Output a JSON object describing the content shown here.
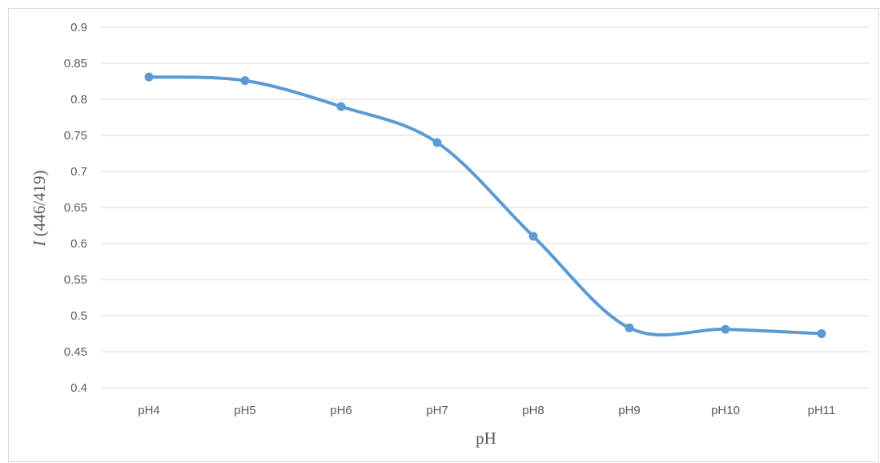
{
  "chart_data": {
    "type": "line",
    "categories": [
      "pH4",
      "pH5",
      "pH6",
      "pH7",
      "pH8",
      "pH9",
      "pH10",
      "pH11"
    ],
    "series": [
      {
        "values": [
          0.831,
          0.826,
          0.79,
          0.74,
          0.61,
          0.483,
          0.481,
          0.475
        ]
      }
    ],
    "xlabel": "pH",
    "ylabel_italic": "I",
    "ylabel_rest": " (446/419)",
    "ylim": [
      0.4,
      0.9
    ],
    "yticks": [
      "0.4",
      "0.45",
      "0.5",
      "0.55",
      "0.6",
      "0.65",
      "0.7",
      "0.75",
      "0.8",
      "0.85",
      "0.9"
    ],
    "grid": true,
    "smooth": true,
    "line_color": "#5b9bd5",
    "grid_color": "#d9d9d9"
  }
}
